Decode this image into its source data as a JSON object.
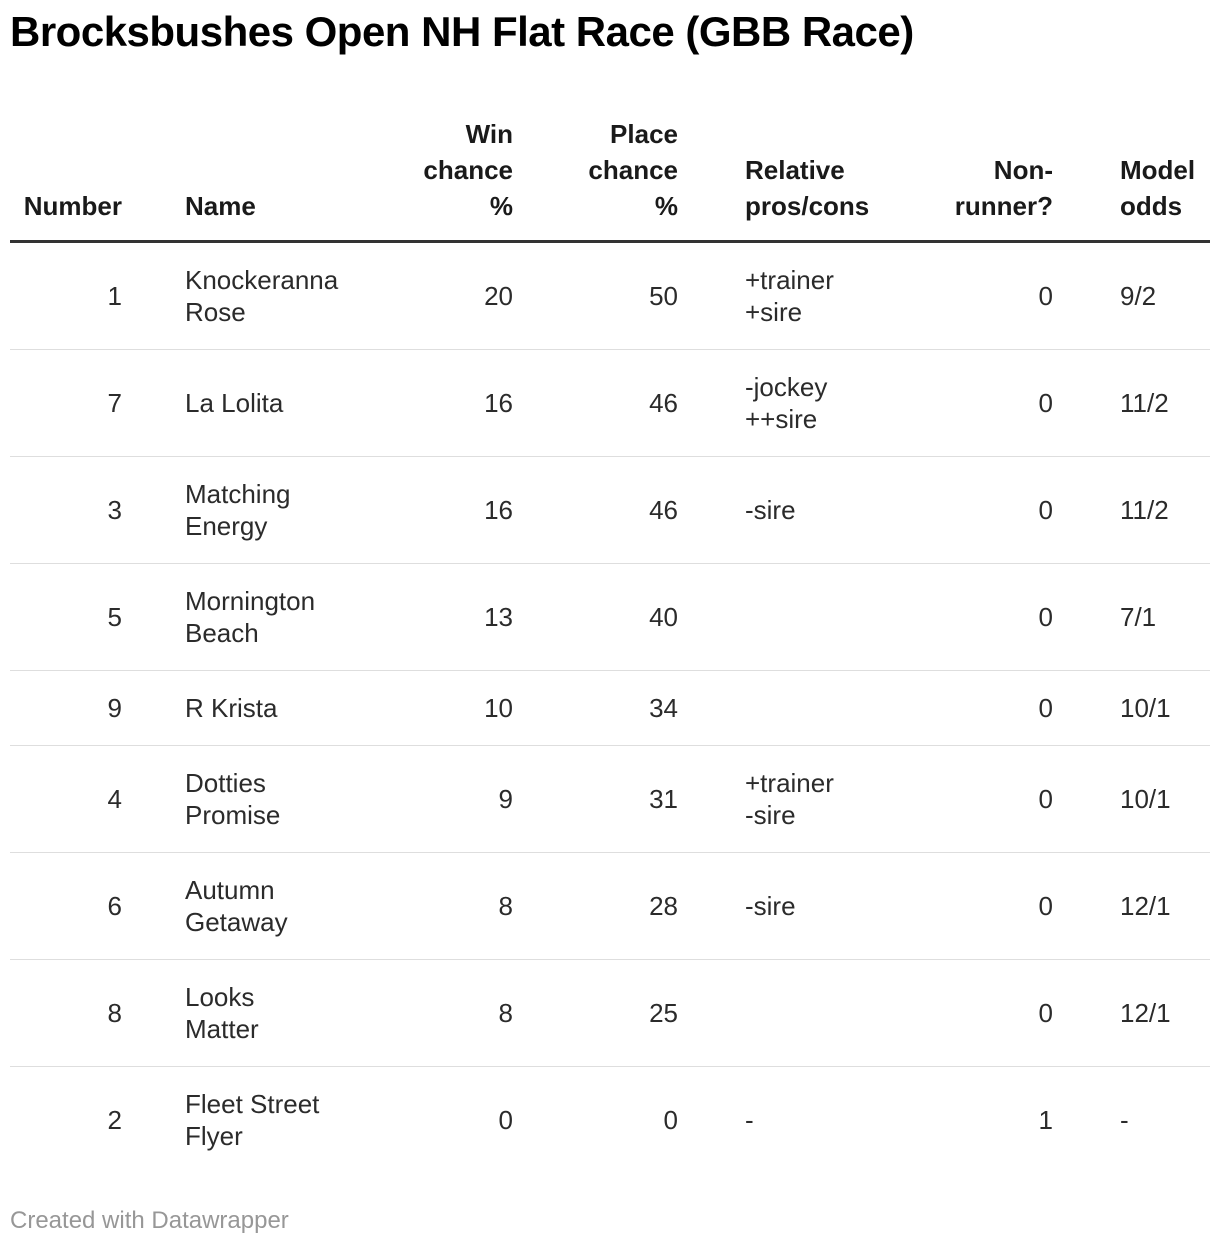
{
  "title": "Brocksbushes Open NH Flat Race (GBB Race)",
  "footer": "Created with Datawrapper",
  "colors": {
    "title_text": "#000000",
    "body_text": "#2b2b2b",
    "header_rule": "#333333",
    "row_rule": "#dedede",
    "attribution_text": "#979797",
    "background": "#ffffff"
  },
  "chart_data": {
    "type": "table",
    "title": "Brocksbushes Open NH Flat Race (GBB Race)",
    "columns": [
      {
        "key": "number",
        "label": "Number",
        "align": "right"
      },
      {
        "key": "name",
        "label": "Name",
        "align": "left"
      },
      {
        "key": "win",
        "label": "Win\nchance\n%",
        "align": "right"
      },
      {
        "key": "place",
        "label": "Place\nchance\n%",
        "align": "right"
      },
      {
        "key": "pros",
        "label": "Relative\npros/cons",
        "align": "left"
      },
      {
        "key": "nonrunner",
        "label": "Non-\nrunner?",
        "align": "right"
      },
      {
        "key": "odds",
        "label": "Model\nodds",
        "align": "left"
      }
    ],
    "rows": [
      {
        "number": "1",
        "name": "Knockeranna\nRose",
        "win": "20",
        "place": "50",
        "pros": "+trainer\n+sire",
        "nonrunner": "0",
        "odds": "9/2"
      },
      {
        "number": "7",
        "name": "La Lolita",
        "win": "16",
        "place": "46",
        "pros": "-jockey\n++sire",
        "nonrunner": "0",
        "odds": "11/2"
      },
      {
        "number": "3",
        "name": "Matching\nEnergy",
        "win": "16",
        "place": "46",
        "pros": "-sire",
        "nonrunner": "0",
        "odds": "11/2"
      },
      {
        "number": "5",
        "name": "Mornington\nBeach",
        "win": "13",
        "place": "40",
        "pros": "",
        "nonrunner": "0",
        "odds": "7/1"
      },
      {
        "number": "9",
        "name": "R Krista",
        "win": "10",
        "place": "34",
        "pros": "",
        "nonrunner": "0",
        "odds": "10/1"
      },
      {
        "number": "4",
        "name": "Dotties\nPromise",
        "win": "9",
        "place": "31",
        "pros": "+trainer\n-sire",
        "nonrunner": "0",
        "odds": "10/1"
      },
      {
        "number": "6",
        "name": "Autumn\nGetaway",
        "win": "8",
        "place": "28",
        "pros": "-sire",
        "nonrunner": "0",
        "odds": "12/1"
      },
      {
        "number": "8",
        "name": "Looks\nMatter",
        "win": "8",
        "place": "25",
        "pros": "",
        "nonrunner": "0",
        "odds": "12/1"
      },
      {
        "number": "2",
        "name": "Fleet Street\nFlyer",
        "win": "0",
        "place": "0",
        "pros": "-",
        "nonrunner": "1",
        "odds": "-"
      }
    ]
  }
}
